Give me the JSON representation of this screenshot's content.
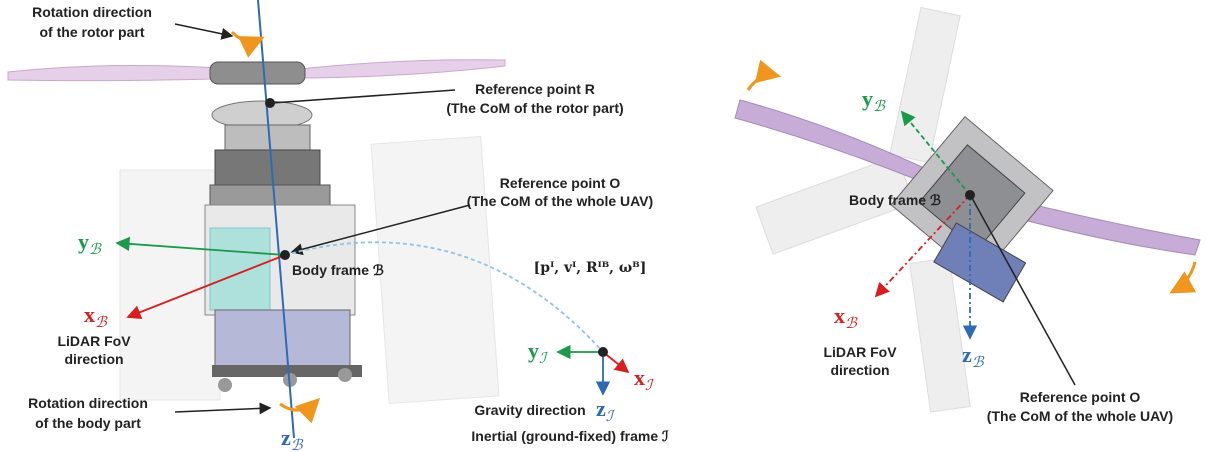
{
  "left": {
    "rotor_rotation": [
      "Rotation direction",
      "of the rotor part"
    ],
    "reference_r": [
      "Reference point R",
      "(The CoM of the rotor part)"
    ],
    "reference_o": [
      "Reference point O",
      "(The CoM of the whole UAV)"
    ],
    "y_body": {
      "symbol": "y",
      "sub": "ℬ"
    },
    "body_frame": "Body frame ℬ",
    "x_body": {
      "symbol": "x",
      "sub": "ℬ"
    },
    "lidar": [
      "LiDAR FoV",
      "direction"
    ],
    "state": "[pᴵ, vᴵ, Rᴵᴮ, ωᴮ]",
    "y_inertial": {
      "symbol": "y",
      "sub": "ℐ"
    },
    "x_inertial": {
      "symbol": "x",
      "sub": "ℐ"
    },
    "gravity": "Gravity direction",
    "z_inertial": {
      "symbol": "z",
      "sub": "ℐ"
    },
    "inertial_frame": "Inertial (ground-fixed) frame ℐ",
    "body_rotation": [
      "Rotation direction",
      "of the body part"
    ],
    "z_body": {
      "symbol": "z",
      "sub": "ℬ"
    }
  },
  "right": {
    "y_body": {
      "symbol": "y",
      "sub": "ℬ"
    },
    "body_frame": "Body frame ℬ",
    "x_body": {
      "symbol": "x",
      "sub": "ℬ"
    },
    "lidar": [
      "LiDAR FoV",
      "direction"
    ],
    "z_body": {
      "symbol": "z",
      "sub": "ℬ"
    },
    "reference_o": [
      "Reference point O",
      "(The CoM of the whole UAV)"
    ]
  }
}
